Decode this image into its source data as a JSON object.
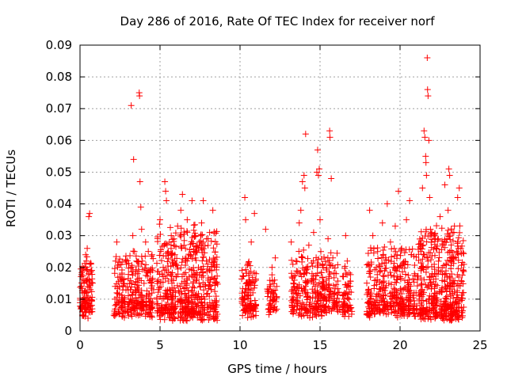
{
  "chart_data": {
    "type": "scatter",
    "title": "Day 286 of 2016, Rate Of TEC Index for receiver norf",
    "xlabel": "GPS time / hours",
    "ylabel": "ROTI / TECUs",
    "xlim": [
      0,
      25
    ],
    "ylim": [
      0,
      0.09
    ],
    "x_ticks": [
      0,
      5,
      10,
      15,
      20,
      25
    ],
    "x_tick_labels": [
      "0",
      "5",
      "10",
      "15",
      "20",
      "25"
    ],
    "y_ticks": [
      0,
      0.01,
      0.02,
      0.03,
      0.04,
      0.05,
      0.06,
      0.07,
      0.08,
      0.09
    ],
    "y_tick_labels": [
      "0",
      "0.01",
      "0.02",
      "0.03",
      "0.04",
      "0.05",
      "0.06",
      "0.07",
      "0.08",
      "0.09"
    ],
    "grid": true,
    "marker": "+",
    "color": "#ff0000",
    "series": [
      {
        "name": "ROTI",
        "points": [
          [
            0.1,
            0.007
          ],
          [
            0.15,
            0.012
          ],
          [
            0.2,
            0.009
          ],
          [
            0.25,
            0.015
          ],
          [
            0.3,
            0.006
          ],
          [
            0.35,
            0.024
          ],
          [
            0.4,
            0.022
          ],
          [
            0.45,
            0.026
          ],
          [
            0.5,
            0.011
          ],
          [
            0.55,
            0.018
          ],
          [
            0.6,
            0.008
          ],
          [
            0.65,
            0.013
          ],
          [
            0.7,
            0.019
          ],
          [
            0.55,
            0.036
          ],
          [
            0.6,
            0.037
          ],
          [
            0.4,
            0.01
          ],
          [
            0.2,
            0.005
          ],
          [
            0.5,
            0.004
          ],
          [
            2.2,
            0.008
          ],
          [
            2.3,
            0.012
          ],
          [
            2.3,
            0.028
          ],
          [
            2.4,
            0.006
          ],
          [
            2.5,
            0.017
          ],
          [
            2.6,
            0.009
          ],
          [
            2.7,
            0.014
          ],
          [
            2.8,
            0.01
          ],
          [
            2.9,
            0.021
          ],
          [
            3.0,
            0.007
          ],
          [
            3.1,
            0.015
          ],
          [
            3.2,
            0.071
          ],
          [
            3.3,
            0.03
          ],
          [
            3.35,
            0.054
          ],
          [
            3.4,
            0.025
          ],
          [
            3.5,
            0.012
          ],
          [
            3.6,
            0.018
          ],
          [
            3.7,
            0.075
          ],
          [
            3.72,
            0.074
          ],
          [
            3.75,
            0.047
          ],
          [
            3.8,
            0.039
          ],
          [
            3.85,
            0.032
          ],
          [
            3.9,
            0.022
          ],
          [
            4.0,
            0.015
          ],
          [
            4.1,
            0.028
          ],
          [
            4.2,
            0.011
          ],
          [
            4.3,
            0.019
          ],
          [
            4.4,
            0.007
          ],
          [
            4.5,
            0.024
          ],
          [
            4.6,
            0.013
          ],
          [
            4.8,
            0.01
          ],
          [
            4.9,
            0.016
          ],
          [
            5.0,
            0.035
          ],
          [
            5.1,
            0.008
          ],
          [
            5.2,
            0.02
          ],
          [
            5.3,
            0.047
          ],
          [
            5.35,
            0.044
          ],
          [
            5.4,
            0.041
          ],
          [
            5.5,
            0.025
          ],
          [
            5.6,
            0.013
          ],
          [
            5.7,
            0.03
          ],
          [
            5.8,
            0.009
          ],
          [
            5.9,
            0.022
          ],
          [
            6.0,
            0.017
          ],
          [
            6.1,
            0.033
          ],
          [
            6.2,
            0.012
          ],
          [
            6.3,
            0.038
          ],
          [
            6.4,
            0.043
          ],
          [
            6.5,
            0.027
          ],
          [
            6.6,
            0.015
          ],
          [
            6.7,
            0.035
          ],
          [
            6.8,
            0.011
          ],
          [
            6.9,
            0.024
          ],
          [
            7.0,
            0.041
          ],
          [
            7.1,
            0.019
          ],
          [
            7.2,
            0.03
          ],
          [
            7.3,
            0.008
          ],
          [
            7.4,
            0.026
          ],
          [
            7.5,
            0.014
          ],
          [
            7.6,
            0.034
          ],
          [
            7.7,
            0.041
          ],
          [
            7.8,
            0.01
          ],
          [
            7.9,
            0.022
          ],
          [
            8.0,
            0.016
          ],
          [
            8.1,
            0.031
          ],
          [
            8.2,
            0.013
          ],
          [
            8.3,
            0.038
          ],
          [
            8.4,
            0.02
          ],
          [
            8.5,
            0.009
          ],
          [
            10.2,
            0.01
          ],
          [
            10.3,
            0.042
          ],
          [
            10.35,
            0.035
          ],
          [
            10.4,
            0.015
          ],
          [
            10.5,
            0.021
          ],
          [
            10.6,
            0.008
          ],
          [
            10.7,
            0.028
          ],
          [
            10.8,
            0.012
          ],
          [
            10.9,
            0.037
          ],
          [
            11.0,
            0.018
          ],
          [
            11.6,
            0.032
          ],
          [
            11.8,
            0.007
          ],
          [
            11.9,
            0.014
          ],
          [
            12.0,
            0.02
          ],
          [
            12.1,
            0.011
          ],
          [
            12.2,
            0.023
          ],
          [
            13.2,
            0.028
          ],
          [
            13.3,
            0.01
          ],
          [
            13.4,
            0.016
          ],
          [
            13.5,
            0.022
          ],
          [
            13.6,
            0.008
          ],
          [
            13.7,
            0.034
          ],
          [
            13.8,
            0.038
          ],
          [
            13.9,
            0.047
          ],
          [
            14.0,
            0.049
          ],
          [
            14.05,
            0.045
          ],
          [
            14.1,
            0.062
          ],
          [
            14.15,
            0.02
          ],
          [
            14.2,
            0.012
          ],
          [
            14.3,
            0.027
          ],
          [
            14.4,
            0.009
          ],
          [
            14.5,
            0.018
          ],
          [
            14.6,
            0.031
          ],
          [
            14.7,
            0.014
          ],
          [
            14.8,
            0.05
          ],
          [
            14.85,
            0.057
          ],
          [
            14.9,
            0.049
          ],
          [
            14.95,
            0.051
          ],
          [
            15.0,
            0.035
          ],
          [
            15.05,
            0.025
          ],
          [
            15.1,
            0.011
          ],
          [
            15.2,
            0.02
          ],
          [
            15.4,
            0.016
          ],
          [
            15.5,
            0.029
          ],
          [
            15.6,
            0.063
          ],
          [
            15.62,
            0.061
          ],
          [
            15.7,
            0.048
          ],
          [
            15.8,
            0.023
          ],
          [
            15.9,
            0.012
          ],
          [
            16.0,
            0.018
          ],
          [
            16.1,
            0.008
          ],
          [
            16.5,
            0.01
          ],
          [
            16.6,
            0.03
          ],
          [
            16.7,
            0.022
          ],
          [
            16.8,
            0.015
          ],
          [
            16.9,
            0.007
          ],
          [
            18.0,
            0.012
          ],
          [
            18.1,
            0.038
          ],
          [
            18.2,
            0.021
          ],
          [
            18.3,
            0.03
          ],
          [
            18.4,
            0.009
          ],
          [
            18.5,
            0.016
          ],
          [
            18.6,
            0.025
          ],
          [
            18.7,
            0.011
          ],
          [
            18.8,
            0.019
          ],
          [
            18.9,
            0.034
          ],
          [
            19.0,
            0.008
          ],
          [
            19.1,
            0.023
          ],
          [
            19.2,
            0.04
          ],
          [
            19.3,
            0.015
          ],
          [
            19.4,
            0.028
          ],
          [
            19.5,
            0.01
          ],
          [
            19.6,
            0.02
          ],
          [
            19.7,
            0.033
          ],
          [
            19.8,
            0.012
          ],
          [
            19.9,
            0.044
          ],
          [
            20.0,
            0.017
          ],
          [
            20.1,
            0.026
          ],
          [
            20.2,
            0.009
          ],
          [
            20.3,
            0.021
          ],
          [
            20.4,
            0.035
          ],
          [
            20.5,
            0.014
          ],
          [
            20.6,
            0.041
          ],
          [
            20.7,
            0.024
          ],
          [
            20.8,
            0.007
          ],
          [
            20.9,
            0.018
          ],
          [
            21.0,
            0.012
          ],
          [
            21.2,
            0.01
          ],
          [
            21.3,
            0.025
          ],
          [
            21.4,
            0.045
          ],
          [
            21.5,
            0.063
          ],
          [
            21.55,
            0.061
          ],
          [
            21.6,
            0.055
          ],
          [
            21.62,
            0.053
          ],
          [
            21.65,
            0.049
          ],
          [
            21.7,
            0.086
          ],
          [
            21.72,
            0.076
          ],
          [
            21.75,
            0.074
          ],
          [
            21.8,
            0.06
          ],
          [
            21.85,
            0.042
          ],
          [
            21.9,
            0.032
          ],
          [
            22.0,
            0.018
          ],
          [
            22.1,
            0.011
          ],
          [
            22.2,
            0.029
          ],
          [
            22.3,
            0.008
          ],
          [
            22.4,
            0.02
          ],
          [
            22.5,
            0.036
          ],
          [
            22.6,
            0.013
          ],
          [
            22.7,
            0.027
          ],
          [
            22.8,
            0.046
          ],
          [
            22.9,
            0.01
          ],
          [
            23.0,
            0.038
          ],
          [
            23.05,
            0.051
          ],
          [
            23.1,
            0.049
          ],
          [
            23.2,
            0.022
          ],
          [
            23.3,
            0.015
          ],
          [
            23.4,
            0.033
          ],
          [
            23.5,
            0.009
          ],
          [
            23.6,
            0.042
          ],
          [
            23.7,
            0.045
          ],
          [
            23.8,
            0.026
          ],
          [
            23.9,
            0.012
          ],
          [
            23.95,
            0.019
          ]
        ]
      }
    ],
    "dense_bands": [
      {
        "x_range": [
          0.0,
          0.8
        ],
        "y_range": [
          0.004,
          0.02
        ],
        "count": 110
      },
      {
        "x_range": [
          2.1,
          4.6
        ],
        "y_range": [
          0.004,
          0.022
        ],
        "count": 260
      },
      {
        "x_range": [
          4.8,
          8.6
        ],
        "y_range": [
          0.003,
          0.03
        ],
        "count": 520
      },
      {
        "x_range": [
          10.1,
          11.0
        ],
        "y_range": [
          0.004,
          0.02
        ],
        "count": 110
      },
      {
        "x_range": [
          11.7,
          12.3
        ],
        "y_range": [
          0.005,
          0.016
        ],
        "count": 50
      },
      {
        "x_range": [
          13.2,
          16.2
        ],
        "y_range": [
          0.004,
          0.022
        ],
        "count": 300
      },
      {
        "x_range": [
          16.4,
          17.0
        ],
        "y_range": [
          0.004,
          0.018
        ],
        "count": 60
      },
      {
        "x_range": [
          17.9,
          21.1
        ],
        "y_range": [
          0.004,
          0.024
        ],
        "count": 340
      },
      {
        "x_range": [
          21.1,
          24.0
        ],
        "y_range": [
          0.003,
          0.03
        ],
        "count": 420
      }
    ]
  }
}
